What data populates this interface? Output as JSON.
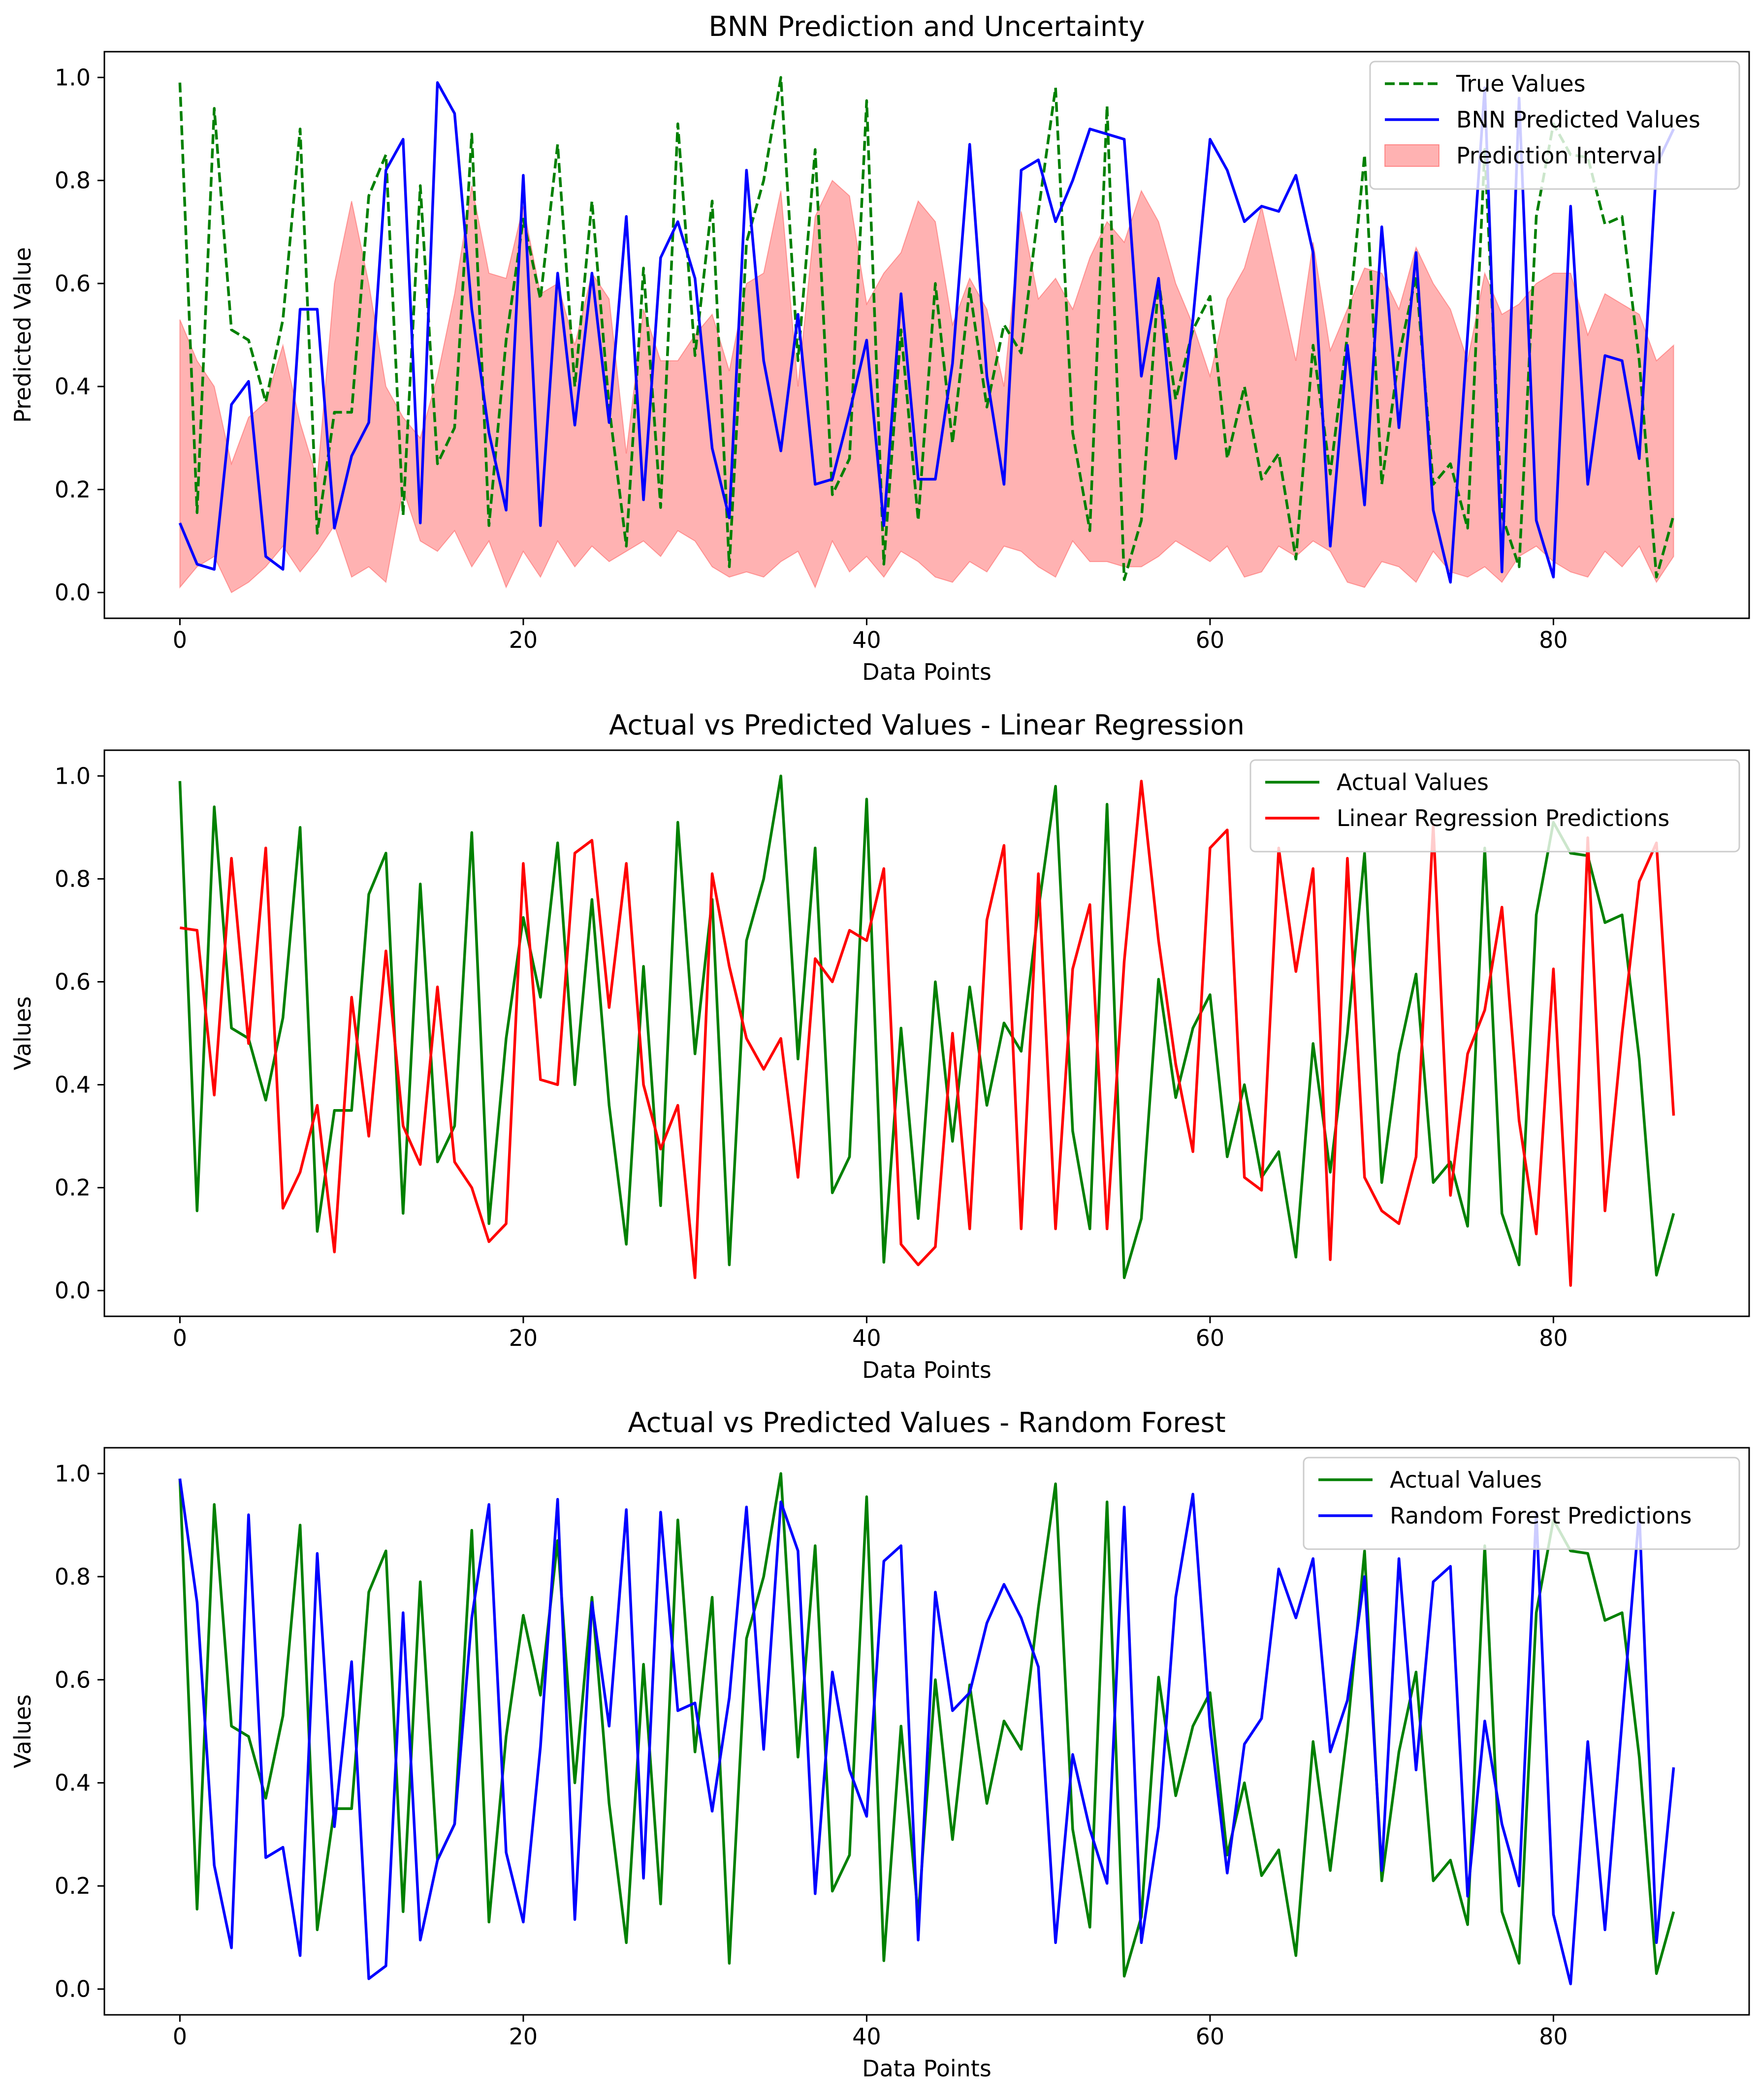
{
  "chart_data": [
    {
      "type": "line",
      "title": "BNN Prediction and Uncertainty",
      "xlabel": "Data Points",
      "ylabel": "Predicted Value",
      "xlim": [
        -4.4,
        91.4
      ],
      "ylim": [
        -0.05,
        1.05
      ],
      "xticks": [
        0,
        20,
        40,
        60,
        80
      ],
      "xtick_labels": [
        "0",
        "20",
        "40",
        "60",
        "80"
      ],
      "yticks": [
        0.0,
        0.2,
        0.4,
        0.6,
        0.8,
        1.0
      ],
      "ytick_labels": [
        "0.0",
        "0.2",
        "0.4",
        "0.6",
        "0.8",
        "1.0"
      ],
      "legend_position": "top-right",
      "legend": [
        "True Values",
        "BNN Predicted Values",
        "Prediction Interval"
      ],
      "series": [
        {
          "name": "True Values",
          "color": "#008000",
          "style": "dashed",
          "values": [
            0.99,
            0.155,
            0.94,
            0.51,
            0.49,
            0.37,
            0.53,
            0.9,
            0.115,
            0.35,
            0.35,
            0.77,
            0.85,
            0.15,
            0.79,
            0.25,
            0.32,
            0.89,
            0.13,
            0.49,
            0.725,
            0.57,
            0.87,
            0.4,
            0.76,
            0.36,
            0.09,
            0.63,
            0.165,
            0.91,
            0.46,
            0.76,
            0.05,
            0.68,
            0.8,
            1.0,
            0.45,
            0.86,
            0.19,
            0.26,
            0.955,
            0.055,
            0.51,
            0.14,
            0.6,
            0.29,
            0.59,
            0.36,
            0.52,
            0.465,
            0.74,
            0.98,
            0.31,
            0.12,
            0.945,
            0.025,
            0.14,
            0.605,
            0.375,
            0.51,
            0.575,
            0.26,
            0.4,
            0.22,
            0.27,
            0.065,
            0.48,
            0.23,
            0.5,
            0.85,
            0.21,
            0.46,
            0.615,
            0.21,
            0.25,
            0.125,
            0.86,
            0.15,
            0.05,
            0.73,
            0.91,
            0.85,
            0.845,
            0.715,
            0.73,
            0.45,
            0.03,
            0.15
          ]
        },
        {
          "name": "BNN Predicted Values",
          "color": "#0000ff",
          "style": "solid",
          "values": [
            0.135,
            0.055,
            0.045,
            0.365,
            0.41,
            0.07,
            0.045,
            0.55,
            0.55,
            0.125,
            0.265,
            0.33,
            0.82,
            0.88,
            0.135,
            0.99,
            0.93,
            0.55,
            0.31,
            0.16,
            0.81,
            0.13,
            0.62,
            0.325,
            0.62,
            0.33,
            0.73,
            0.18,
            0.65,
            0.72,
            0.61,
            0.28,
            0.145,
            0.82,
            0.45,
            0.275,
            0.54,
            0.21,
            0.22,
            0.35,
            0.49,
            0.13,
            0.58,
            0.22,
            0.22,
            0.445,
            0.87,
            0.42,
            0.21,
            0.82,
            0.84,
            0.72,
            0.8,
            0.9,
            0.89,
            0.88,
            0.42,
            0.61,
            0.26,
            0.53,
            0.88,
            0.82,
            0.72,
            0.75,
            0.74,
            0.81,
            0.66,
            0.09,
            0.48,
            0.17,
            0.71,
            0.32,
            0.66,
            0.16,
            0.02,
            0.5,
            0.98,
            0.04,
            0.96,
            0.14,
            0.03,
            0.75,
            0.21,
            0.46,
            0.45,
            0.26,
            0.83,
            0.9
          ]
        },
        {
          "name": "Prediction Interval",
          "color": "#ff0000",
          "style": "fill",
          "lower": [
            0.01,
            0.05,
            0.07,
            0.0,
            0.02,
            0.05,
            0.09,
            0.04,
            0.08,
            0.13,
            0.03,
            0.05,
            0.02,
            0.2,
            0.1,
            0.08,
            0.12,
            0.05,
            0.1,
            0.01,
            0.08,
            0.03,
            0.1,
            0.05,
            0.09,
            0.06,
            0.08,
            0.1,
            0.07,
            0.12,
            0.1,
            0.05,
            0.03,
            0.04,
            0.03,
            0.06,
            0.08,
            0.01,
            0.1,
            0.04,
            0.07,
            0.03,
            0.08,
            0.06,
            0.03,
            0.02,
            0.06,
            0.04,
            0.09,
            0.08,
            0.05,
            0.03,
            0.1,
            0.06,
            0.06,
            0.05,
            0.05,
            0.07,
            0.1,
            0.08,
            0.06,
            0.09,
            0.03,
            0.04,
            0.09,
            0.07,
            0.1,
            0.08,
            0.02,
            0.01,
            0.06,
            0.05,
            0.02,
            0.08,
            0.04,
            0.03,
            0.05,
            0.02,
            0.07,
            0.09,
            0.06,
            0.04,
            0.03,
            0.08,
            0.05,
            0.09,
            0.02,
            0.07
          ],
          "upper": [
            0.53,
            0.45,
            0.4,
            0.25,
            0.34,
            0.37,
            0.48,
            0.33,
            0.22,
            0.6,
            0.76,
            0.6,
            0.4,
            0.34,
            0.3,
            0.42,
            0.58,
            0.79,
            0.62,
            0.61,
            0.75,
            0.58,
            0.6,
            0.48,
            0.62,
            0.57,
            0.27,
            0.55,
            0.45,
            0.45,
            0.5,
            0.54,
            0.43,
            0.6,
            0.62,
            0.78,
            0.4,
            0.73,
            0.8,
            0.77,
            0.56,
            0.62,
            0.66,
            0.76,
            0.72,
            0.52,
            0.61,
            0.55,
            0.4,
            0.74,
            0.57,
            0.61,
            0.55,
            0.65,
            0.72,
            0.68,
            0.78,
            0.72,
            0.6,
            0.52,
            0.42,
            0.57,
            0.63,
            0.75,
            0.6,
            0.45,
            0.68,
            0.47,
            0.55,
            0.63,
            0.62,
            0.55,
            0.67,
            0.6,
            0.55,
            0.45,
            0.62,
            0.54,
            0.56,
            0.6,
            0.62,
            0.62,
            0.5,
            0.58,
            0.56,
            0.54,
            0.45,
            0.48
          ]
        }
      ]
    },
    {
      "type": "line",
      "title": "Actual vs Predicted Values - Linear Regression",
      "xlabel": "Data Points",
      "ylabel": "Values",
      "xlim": [
        -4.4,
        91.4
      ],
      "ylim": [
        -0.05,
        1.05
      ],
      "xticks": [
        0,
        20,
        40,
        60,
        80
      ],
      "xtick_labels": [
        "0",
        "20",
        "40",
        "60",
        "80"
      ],
      "yticks": [
        0.0,
        0.2,
        0.4,
        0.6,
        0.8,
        1.0
      ],
      "ytick_labels": [
        "0.0",
        "0.2",
        "0.4",
        "0.6",
        "0.8",
        "1.0"
      ],
      "legend_position": "top-right",
      "legend": [
        "Actual Values",
        "Linear Regression Predictions"
      ],
      "series": [
        {
          "name": "Actual Values",
          "color": "#008000",
          "style": "solid",
          "values": [
            0.99,
            0.155,
            0.94,
            0.51,
            0.49,
            0.37,
            0.53,
            0.9,
            0.115,
            0.35,
            0.35,
            0.77,
            0.85,
            0.15,
            0.79,
            0.25,
            0.32,
            0.89,
            0.13,
            0.49,
            0.725,
            0.57,
            0.87,
            0.4,
            0.76,
            0.36,
            0.09,
            0.63,
            0.165,
            0.91,
            0.46,
            0.76,
            0.05,
            0.68,
            0.8,
            1.0,
            0.45,
            0.86,
            0.19,
            0.26,
            0.955,
            0.055,
            0.51,
            0.14,
            0.6,
            0.29,
            0.59,
            0.36,
            0.52,
            0.465,
            0.74,
            0.98,
            0.31,
            0.12,
            0.945,
            0.025,
            0.14,
            0.605,
            0.375,
            0.51,
            0.575,
            0.26,
            0.4,
            0.22,
            0.27,
            0.065,
            0.48,
            0.23,
            0.5,
            0.85,
            0.21,
            0.46,
            0.615,
            0.21,
            0.25,
            0.125,
            0.86,
            0.15,
            0.05,
            0.73,
            0.91,
            0.85,
            0.845,
            0.715,
            0.73,
            0.45,
            0.03,
            0.15
          ]
        },
        {
          "name": "Linear Regression Predictions",
          "color": "#ff0000",
          "style": "solid",
          "values": [
            0.705,
            0.7,
            0.38,
            0.84,
            0.48,
            0.86,
            0.16,
            0.23,
            0.36,
            0.075,
            0.57,
            0.3,
            0.66,
            0.32,
            0.245,
            0.59,
            0.25,
            0.2,
            0.095,
            0.13,
            0.83,
            0.41,
            0.4,
            0.85,
            0.875,
            0.55,
            0.83,
            0.4,
            0.275,
            0.36,
            0.025,
            0.81,
            0.63,
            0.49,
            0.43,
            0.49,
            0.22,
            0.645,
            0.6,
            0.7,
            0.68,
            0.82,
            0.09,
            0.05,
            0.085,
            0.5,
            0.12,
            0.72,
            0.865,
            0.12,
            0.81,
            0.12,
            0.625,
            0.75,
            0.12,
            0.64,
            0.99,
            0.68,
            0.44,
            0.27,
            0.86,
            0.895,
            0.22,
            0.195,
            0.86,
            0.62,
            0.82,
            0.06,
            0.84,
            0.22,
            0.155,
            0.13,
            0.26,
            0.905,
            0.185,
            0.46,
            0.545,
            0.745,
            0.33,
            0.11,
            0.625,
            0.01,
            0.88,
            0.155,
            0.5,
            0.795,
            0.87,
            0.34
          ]
        }
      ]
    },
    {
      "type": "line",
      "title": "Actual vs Predicted Values - Random Forest",
      "xlabel": "Data Points",
      "ylabel": "Values",
      "xlim": [
        -4.4,
        91.4
      ],
      "ylim": [
        -0.05,
        1.05
      ],
      "xticks": [
        0,
        20,
        40,
        60,
        80
      ],
      "xtick_labels": [
        "0",
        "20",
        "40",
        "60",
        "80"
      ],
      "yticks": [
        0.0,
        0.2,
        0.4,
        0.6,
        0.8,
        1.0
      ],
      "ytick_labels": [
        "0.0",
        "0.2",
        "0.4",
        "0.6",
        "0.8",
        "1.0"
      ],
      "legend_position": "top-right",
      "legend": [
        "Actual Values",
        "Random Forest Predictions"
      ],
      "series": [
        {
          "name": "Actual Values",
          "color": "#008000",
          "style": "solid",
          "values": [
            0.99,
            0.155,
            0.94,
            0.51,
            0.49,
            0.37,
            0.53,
            0.9,
            0.115,
            0.35,
            0.35,
            0.77,
            0.85,
            0.15,
            0.79,
            0.25,
            0.32,
            0.89,
            0.13,
            0.49,
            0.725,
            0.57,
            0.87,
            0.4,
            0.76,
            0.36,
            0.09,
            0.63,
            0.165,
            0.91,
            0.46,
            0.76,
            0.05,
            0.68,
            0.8,
            1.0,
            0.45,
            0.86,
            0.19,
            0.26,
            0.955,
            0.055,
            0.51,
            0.14,
            0.6,
            0.29,
            0.59,
            0.36,
            0.52,
            0.465,
            0.74,
            0.98,
            0.31,
            0.12,
            0.945,
            0.025,
            0.14,
            0.605,
            0.375,
            0.51,
            0.575,
            0.26,
            0.4,
            0.22,
            0.27,
            0.065,
            0.48,
            0.23,
            0.5,
            0.85,
            0.21,
            0.46,
            0.615,
            0.21,
            0.25,
            0.125,
            0.86,
            0.15,
            0.05,
            0.73,
            0.91,
            0.85,
            0.845,
            0.715,
            0.73,
            0.45,
            0.03,
            0.15
          ]
        },
        {
          "name": "Random Forest Predictions",
          "color": "#0000ff",
          "style": "solid",
          "values": [
            0.99,
            0.75,
            0.24,
            0.08,
            0.92,
            0.255,
            0.275,
            0.065,
            0.845,
            0.315,
            0.635,
            0.02,
            0.045,
            0.73,
            0.095,
            0.25,
            0.32,
            0.72,
            0.94,
            0.265,
            0.13,
            0.47,
            0.95,
            0.135,
            0.75,
            0.51,
            0.93,
            0.215,
            0.925,
            0.54,
            0.555,
            0.345,
            0.565,
            0.935,
            0.465,
            0.945,
            0.85,
            0.185,
            0.615,
            0.425,
            0.335,
            0.83,
            0.86,
            0.095,
            0.77,
            0.54,
            0.575,
            0.71,
            0.785,
            0.72,
            0.625,
            0.09,
            0.455,
            0.31,
            0.205,
            0.935,
            0.09,
            0.315,
            0.76,
            0.96,
            0.51,
            0.225,
            0.475,
            0.525,
            0.815,
            0.72,
            0.835,
            0.46,
            0.56,
            0.8,
            0.23,
            0.835,
            0.425,
            0.79,
            0.82,
            0.18,
            0.52,
            0.32,
            0.2,
            0.925,
            0.145,
            0.01,
            0.48,
            0.115,
            0.52,
            0.925,
            0.09,
            0.43
          ]
        }
      ]
    }
  ]
}
